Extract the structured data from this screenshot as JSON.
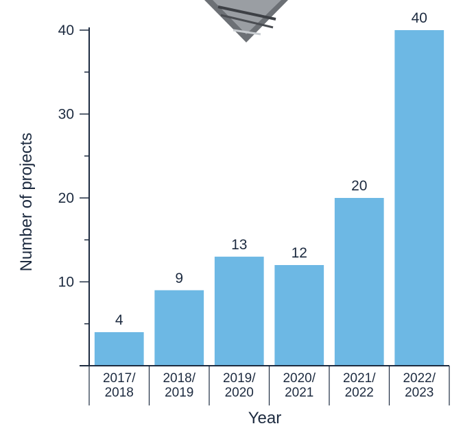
{
  "chart_data": {
    "type": "bar",
    "title": "",
    "categories": [
      [
        "2017/",
        "2018"
      ],
      [
        "2018/",
        "2019"
      ],
      [
        "2019/",
        "2020"
      ],
      [
        "2020/",
        "2021"
      ],
      [
        "2021/",
        "2022"
      ],
      [
        "2022/",
        "2023"
      ]
    ],
    "values": [
      4,
      9,
      13,
      12,
      20,
      40
    ],
    "data_labels": [
      "4",
      "9",
      "13",
      "12",
      "20",
      "40"
    ],
    "xlabel": "Year",
    "ylabel": "Number of projects",
    "ylim": [
      0,
      40
    ],
    "yticks": [
      10,
      20,
      30,
      40
    ],
    "ytick_labels": [
      "10",
      "20",
      "30",
      "40"
    ],
    "y_minor_step": 5,
    "bar_color": "#6db8e4",
    "axis_color": "#1c2a3f",
    "grid": false,
    "legend": "none"
  }
}
